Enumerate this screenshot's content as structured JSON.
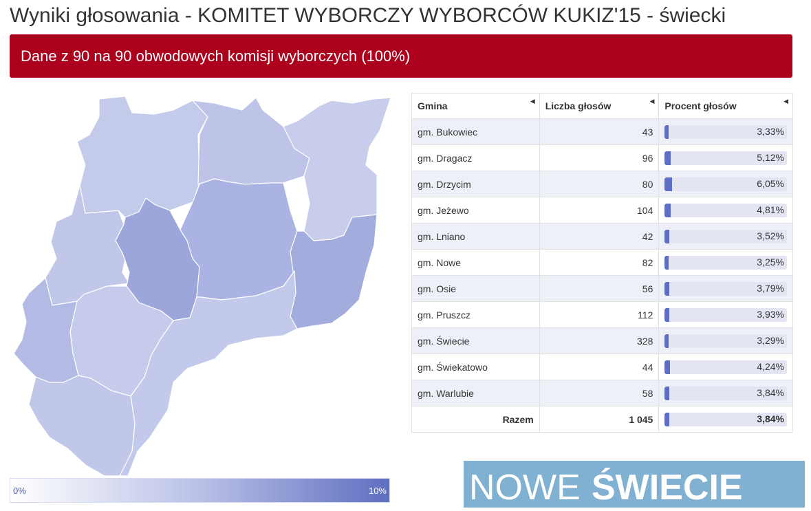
{
  "page": {
    "title": "Wyniki głosowania - KOMITET WYBORCZY WYBORCÓW KUKIZ'15 - świecki",
    "banner": "Dane z 90 na 90 obwodowych komisji wyborczych (100%)"
  },
  "legend": {
    "min_label": "0%",
    "max_label": "10%",
    "colors": {
      "low": "#ffffff",
      "high": "#5f6fc0"
    }
  },
  "table": {
    "headers": {
      "gmina": "Gmina",
      "votes": "Liczba głosów",
      "percent": "Procent głosów"
    },
    "rows": [
      {
        "gmina": "gm. Bukowiec",
        "votes": "43",
        "percent": "3,33%",
        "value": 3.33
      },
      {
        "gmina": "gm. Dragacz",
        "votes": "96",
        "percent": "5,12%",
        "value": 5.12
      },
      {
        "gmina": "gm. Drzycim",
        "votes": "80",
        "percent": "6,05%",
        "value": 6.05
      },
      {
        "gmina": "gm. Jeżewo",
        "votes": "104",
        "percent": "4,81%",
        "value": 4.81
      },
      {
        "gmina": "gm. Lniano",
        "votes": "42",
        "percent": "3,52%",
        "value": 3.52
      },
      {
        "gmina": "gm. Nowe",
        "votes": "82",
        "percent": "3,25%",
        "value": 3.25
      },
      {
        "gmina": "gm. Osie",
        "votes": "56",
        "percent": "3,79%",
        "value": 3.79
      },
      {
        "gmina": "gm. Pruszcz",
        "votes": "112",
        "percent": "3,93%",
        "value": 3.93
      },
      {
        "gmina": "gm. Świecie",
        "votes": "328",
        "percent": "3,29%",
        "value": 3.29
      },
      {
        "gmina": "gm. Świekatowo",
        "votes": "44",
        "percent": "4,24%",
        "value": 4.24
      },
      {
        "gmina": "gm. Warlubie",
        "votes": "58",
        "percent": "3,84%",
        "value": 3.84
      }
    ],
    "total": {
      "label": "Razem",
      "votes": "1 045",
      "percent": "3,84%",
      "value": 3.84
    }
  },
  "logo": {
    "word1": "NOWE",
    "word2": "ŚWIECIE",
    "background": "#80b0d2"
  }
}
